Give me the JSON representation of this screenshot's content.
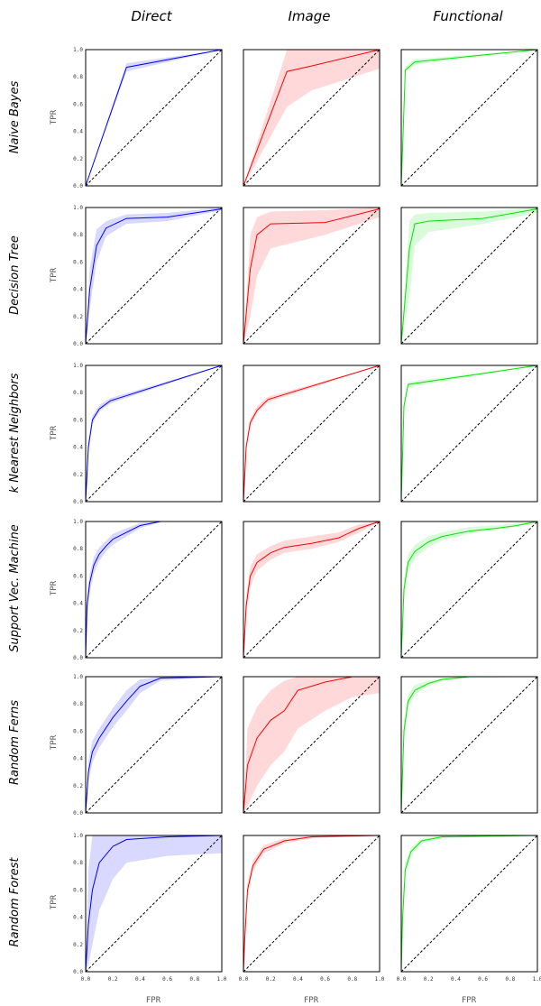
{
  "figure": {
    "column_titles": [
      "Direct",
      "Image",
      "Functional"
    ],
    "row_titles": [
      "Naive Bayes",
      "Decision Tree",
      "k Nearest Neighbors",
      "Support Vec. Machine",
      "Random Ferns",
      "Random Forest"
    ],
    "ylabel": "TPR",
    "xlabel": "FPR",
    "colors": {
      "Direct": "#0000ff",
      "Image": "#ff0000",
      "Functional": "#00e600",
      "diagonal": "#000000"
    },
    "ytick_labels": [
      "0.0",
      "0.2",
      "0.4",
      "0.6",
      "0.8",
      "1.0"
    ],
    "xtick_labels": [
      "0.0",
      "0.2",
      "0.4",
      "0.6",
      "0.8",
      "1.0"
    ]
  },
  "chart_data": [
    {
      "type": "line",
      "title": "Naive Bayes / Direct",
      "xlim": [
        0,
        1
      ],
      "ylim": [
        0,
        1
      ],
      "grid": false,
      "series": [
        {
          "x": [
            0,
            0.3,
            1
          ],
          "y": [
            0,
            0.87,
            1
          ]
        }
      ],
      "band": {
        "lower": [
          0,
          0.84,
          1
        ],
        "upper": [
          0,
          0.9,
          1
        ]
      }
    },
    {
      "type": "line",
      "title": "Naive Bayes / Image",
      "xlim": [
        0,
        1
      ],
      "ylim": [
        0,
        1
      ],
      "grid": false,
      "series": [
        {
          "x": [
            0,
            0.32,
            0.5,
            1
          ],
          "y": [
            0,
            0.84,
            0.88,
            1
          ]
        }
      ],
      "band": {
        "lower": [
          0,
          0.58,
          0.7,
          0.86
        ],
        "upper": [
          0,
          1.0,
          1.0,
          1.0
        ]
      }
    },
    {
      "type": "line",
      "title": "Naive Bayes / Functional",
      "xlim": [
        0,
        1
      ],
      "ylim": [
        0,
        1
      ],
      "grid": false,
      "series": [
        {
          "x": [
            0,
            0.03,
            0.1,
            1
          ],
          "y": [
            0,
            0.85,
            0.91,
            1
          ]
        }
      ],
      "band": {
        "lower": [
          0,
          0.83,
          0.89,
          1
        ],
        "upper": [
          0,
          0.88,
          0.93,
          1
        ]
      }
    },
    {
      "type": "line",
      "title": "Decision Tree / Direct",
      "xlim": [
        0,
        1
      ],
      "ylim": [
        0,
        1
      ],
      "grid": false,
      "series": [
        {
          "x": [
            0,
            0.03,
            0.08,
            0.15,
            0.3,
            0.6,
            1
          ],
          "y": [
            0,
            0.4,
            0.72,
            0.85,
            0.92,
            0.93,
            0.99
          ]
        }
      ],
      "band": {
        "lower": [
          0,
          0.25,
          0.6,
          0.79,
          0.88,
          0.9,
          0.98
        ],
        "upper": [
          0,
          0.55,
          0.84,
          0.9,
          0.95,
          0.96,
          1.0
        ]
      }
    },
    {
      "type": "line",
      "title": "Decision Tree / Image",
      "xlim": [
        0,
        1
      ],
      "ylim": [
        0,
        1
      ],
      "grid": false,
      "series": [
        {
          "x": [
            0,
            0.05,
            0.1,
            0.2,
            0.6,
            1
          ],
          "y": [
            0,
            0.55,
            0.8,
            0.88,
            0.89,
            0.99
          ]
        }
      ],
      "band": {
        "lower": [
          0,
          0.2,
          0.5,
          0.7,
          0.8,
          0.93
        ],
        "upper": [
          0,
          0.8,
          0.93,
          0.97,
          0.98,
          1.0
        ]
      }
    },
    {
      "type": "line",
      "title": "Decision Tree / Functional",
      "xlim": [
        0,
        1
      ],
      "ylim": [
        0,
        1
      ],
      "grid": false,
      "series": [
        {
          "x": [
            0,
            0.06,
            0.1,
            0.2,
            0.6,
            1
          ],
          "y": [
            0,
            0.7,
            0.88,
            0.9,
            0.92,
            0.99
          ]
        }
      ],
      "band": {
        "lower": [
          0,
          0.35,
          0.72,
          0.82,
          0.88,
          0.96
        ],
        "upper": [
          0,
          0.9,
          0.95,
          0.96,
          0.97,
          1.0
        ]
      }
    },
    {
      "type": "line",
      "title": "k Nearest Neighbors / Direct",
      "xlim": [
        0,
        1
      ],
      "ylim": [
        0,
        1
      ],
      "grid": false,
      "series": [
        {
          "x": [
            0,
            0.02,
            0.05,
            0.1,
            0.18,
            1
          ],
          "y": [
            0,
            0.4,
            0.6,
            0.68,
            0.74,
            1
          ]
        }
      ],
      "band": {
        "lower": [
          0,
          0.36,
          0.57,
          0.66,
          0.72,
          1
        ],
        "upper": [
          0,
          0.44,
          0.63,
          0.71,
          0.76,
          1
        ]
      }
    },
    {
      "type": "line",
      "title": "k Nearest Neighbors / Image",
      "xlim": [
        0,
        1
      ],
      "ylim": [
        0,
        1
      ],
      "grid": false,
      "series": [
        {
          "x": [
            0,
            0.02,
            0.05,
            0.1,
            0.18,
            1
          ],
          "y": [
            0,
            0.4,
            0.58,
            0.67,
            0.75,
            1
          ]
        }
      ],
      "band": {
        "lower": [
          0,
          0.37,
          0.55,
          0.65,
          0.73,
          1
        ],
        "upper": [
          0,
          0.43,
          0.61,
          0.7,
          0.77,
          1
        ]
      }
    },
    {
      "type": "line",
      "title": "k Nearest Neighbors / Functional",
      "xlim": [
        0,
        1
      ],
      "ylim": [
        0,
        1
      ],
      "grid": false,
      "series": [
        {
          "x": [
            0,
            0.02,
            0.05,
            1
          ],
          "y": [
            0,
            0.7,
            0.86,
            1
          ]
        }
      ],
      "band": {
        "lower": [
          0,
          0.67,
          0.84,
          1
        ],
        "upper": [
          0,
          0.73,
          0.88,
          1
        ]
      }
    },
    {
      "type": "line",
      "title": "Support Vec. Machine / Direct",
      "xlim": [
        0,
        1
      ],
      "ylim": [
        0,
        1
      ],
      "grid": false,
      "series": [
        {
          "x": [
            0,
            0.01,
            0.03,
            0.06,
            0.1,
            0.15,
            0.2,
            0.3,
            0.4,
            0.55,
            1
          ],
          "y": [
            0,
            0.38,
            0.55,
            0.68,
            0.76,
            0.82,
            0.87,
            0.92,
            0.97,
            1,
            1
          ]
        }
      ],
      "band": {
        "lower": [
          0,
          0.3,
          0.48,
          0.62,
          0.71,
          0.78,
          0.83,
          0.89,
          0.95,
          1,
          1
        ],
        "upper": [
          0,
          0.46,
          0.62,
          0.74,
          0.81,
          0.86,
          0.91,
          0.95,
          0.99,
          1,
          1
        ]
      }
    },
    {
      "type": "line",
      "title": "Support Vec. Machine / Image",
      "xlim": [
        0,
        1
      ],
      "ylim": [
        0,
        1
      ],
      "grid": false,
      "series": [
        {
          "x": [
            0,
            0.02,
            0.05,
            0.1,
            0.2,
            0.3,
            0.5,
            0.7,
            0.85,
            1
          ],
          "y": [
            0,
            0.38,
            0.6,
            0.7,
            0.77,
            0.81,
            0.84,
            0.88,
            0.95,
            1
          ]
        }
      ],
      "band": {
        "lower": [
          0,
          0.3,
          0.52,
          0.64,
          0.72,
          0.77,
          0.8,
          0.85,
          0.92,
          1
        ],
        "upper": [
          0,
          0.46,
          0.67,
          0.76,
          0.82,
          0.86,
          0.89,
          0.92,
          0.98,
          1
        ]
      }
    },
    {
      "type": "line",
      "title": "Support Vec. Machine / Functional",
      "xlim": [
        0,
        1
      ],
      "ylim": [
        0,
        1
      ],
      "grid": false,
      "series": [
        {
          "x": [
            0,
            0.02,
            0.05,
            0.1,
            0.2,
            0.3,
            0.5,
            0.7,
            0.85,
            1
          ],
          "y": [
            0,
            0.5,
            0.7,
            0.78,
            0.85,
            0.89,
            0.93,
            0.95,
            0.97,
            1
          ]
        }
      ],
      "band": {
        "lower": [
          0,
          0.43,
          0.64,
          0.73,
          0.81,
          0.86,
          0.91,
          0.94,
          0.96,
          1
        ],
        "upper": [
          0,
          0.57,
          0.76,
          0.83,
          0.89,
          0.92,
          0.96,
          0.97,
          0.99,
          1
        ]
      }
    },
    {
      "type": "line",
      "title": "Random Ferns / Direct",
      "xlim": [
        0,
        1
      ],
      "ylim": [
        0,
        1
      ],
      "grid": false,
      "series": [
        {
          "x": [
            0,
            0.02,
            0.05,
            0.1,
            0.2,
            0.3,
            0.4,
            0.55,
            1
          ],
          "y": [
            0,
            0.3,
            0.45,
            0.55,
            0.7,
            0.82,
            0.93,
            0.99,
            1
          ]
        }
      ],
      "band": {
        "lower": [
          0,
          0.22,
          0.37,
          0.48,
          0.63,
          0.75,
          0.88,
          0.97,
          1
        ],
        "upper": [
          0,
          0.38,
          0.53,
          0.62,
          0.77,
          0.9,
          0.98,
          1.0,
          1.0
        ]
      }
    },
    {
      "type": "line",
      "title": "Random Ferns / Image",
      "xlim": [
        0,
        1
      ],
      "ylim": [
        0,
        1
      ],
      "grid": false,
      "series": [
        {
          "x": [
            0,
            0.03,
            0.1,
            0.2,
            0.3,
            0.4,
            0.6,
            0.8,
            1
          ],
          "y": [
            0,
            0.35,
            0.55,
            0.68,
            0.75,
            0.9,
            0.96,
            1,
            1
          ]
        }
      ],
      "band": {
        "lower": [
          0,
          0.05,
          0.2,
          0.35,
          0.45,
          0.62,
          0.75,
          0.85,
          0.88
        ],
        "upper": [
          0,
          0.62,
          0.78,
          0.9,
          0.97,
          1.0,
          1.0,
          1.0,
          1.0
        ]
      }
    },
    {
      "type": "line",
      "title": "Random Ferns / Functional",
      "xlim": [
        0,
        1
      ],
      "ylim": [
        0,
        1
      ],
      "grid": false,
      "series": [
        {
          "x": [
            0,
            0.02,
            0.05,
            0.1,
            0.2,
            0.3,
            0.5,
            1
          ],
          "y": [
            0,
            0.6,
            0.82,
            0.9,
            0.95,
            0.98,
            1,
            1
          ]
        }
      ],
      "band": {
        "lower": [
          0,
          0.53,
          0.77,
          0.87,
          0.93,
          0.97,
          0.99,
          1
        ],
        "upper": [
          0,
          0.67,
          0.87,
          0.94,
          0.97,
          0.99,
          1,
          1
        ]
      }
    },
    {
      "type": "line",
      "title": "Random Forest / Direct",
      "xlim": [
        0,
        1
      ],
      "ylim": [
        0,
        1
      ],
      "grid": false,
      "series": [
        {
          "x": [
            0,
            0.02,
            0.05,
            0.1,
            0.2,
            0.3,
            0.6,
            1
          ],
          "y": [
            0,
            0.35,
            0.6,
            0.8,
            0.92,
            0.97,
            0.99,
            1
          ]
        }
      ],
      "band": {
        "lower": [
          0,
          0.05,
          0.2,
          0.45,
          0.68,
          0.8,
          0.85,
          0.87
        ],
        "upper": [
          0,
          0.75,
          1.0,
          1.0,
          1.0,
          1.0,
          1.0,
          1.0
        ]
      }
    },
    {
      "type": "line",
      "title": "Random Forest / Image",
      "xlim": [
        0,
        1
      ],
      "ylim": [
        0,
        1
      ],
      "grid": false,
      "series": [
        {
          "x": [
            0,
            0.01,
            0.03,
            0.07,
            0.15,
            0.3,
            0.5,
            1
          ],
          "y": [
            0,
            0.25,
            0.6,
            0.78,
            0.9,
            0.96,
            0.99,
            1
          ]
        }
      ],
      "band": {
        "lower": [
          0,
          0.2,
          0.55,
          0.74,
          0.87,
          0.94,
          0.98,
          1
        ],
        "upper": [
          0,
          0.3,
          0.65,
          0.82,
          0.93,
          0.98,
          1.0,
          1
        ]
      }
    },
    {
      "type": "line",
      "title": "Random Forest / Functional",
      "xlim": [
        0,
        1
      ],
      "ylim": [
        0,
        1
      ],
      "grid": false,
      "series": [
        {
          "x": [
            0,
            0.01,
            0.03,
            0.07,
            0.15,
            0.3,
            1
          ],
          "y": [
            0,
            0.4,
            0.75,
            0.88,
            0.96,
            0.99,
            1
          ]
        }
      ],
      "band": {
        "lower": [
          0,
          0.3,
          0.7,
          0.85,
          0.94,
          0.98,
          1
        ],
        "upper": [
          0,
          0.5,
          0.8,
          0.91,
          0.98,
          1.0,
          1
        ]
      }
    }
  ]
}
